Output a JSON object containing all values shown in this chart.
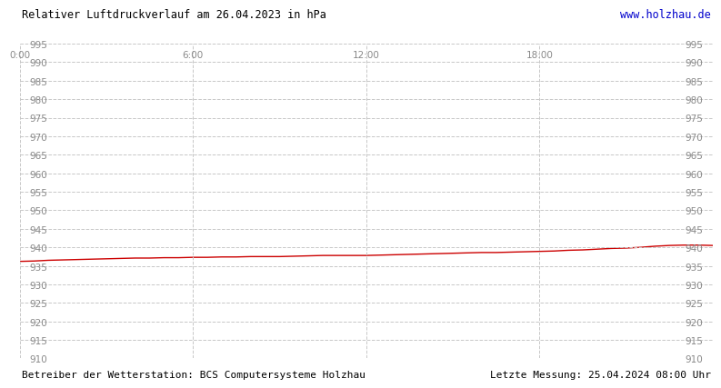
{
  "title": "Relativer Luftdruckverlauf am 26.04.2023 in hPa",
  "url_text": "www.holzhau.de",
  "url_color": "#0000cc",
  "bottom_left_text": "Betreiber der Wetterstation: BCS Computersysteme Holzhau",
  "bottom_right_text": "Letzte Messung: 25.04.2024 08:00 Uhr",
  "ylim": [
    910,
    995
  ],
  "yticks": [
    910,
    915,
    920,
    925,
    930,
    935,
    940,
    945,
    950,
    955,
    960,
    965,
    970,
    975,
    980,
    985,
    990,
    995
  ],
  "xlim": [
    0,
    1440
  ],
  "xtick_positions": [
    0,
    360,
    720,
    1080,
    1440
  ],
  "xtick_labels": [
    "0:00",
    "6:00",
    "12:00",
    "18:00",
    ""
  ],
  "line_color": "#cc0000",
  "line_width": 1.0,
  "grid_color": "#c8c8c8",
  "grid_style": "--",
  "background_color": "#ffffff",
  "plot_bg_color": "#ffffff",
  "title_fontsize": 8.5,
  "axis_fontsize": 7.5,
  "footer_fontsize": 8.0,
  "pressure_data_x": [
    0,
    30,
    60,
    90,
    120,
    150,
    180,
    210,
    240,
    270,
    300,
    330,
    360,
    390,
    420,
    450,
    480,
    510,
    540,
    570,
    600,
    630,
    660,
    690,
    720,
    750,
    780,
    810,
    840,
    870,
    900,
    930,
    960,
    990,
    1020,
    1050,
    1080,
    1110,
    1140,
    1170,
    1200,
    1230,
    1260,
    1290,
    1320,
    1350,
    1380,
    1410,
    1440
  ],
  "pressure_data_y": [
    936.2,
    936.3,
    936.5,
    936.6,
    936.7,
    936.8,
    936.9,
    937.0,
    937.1,
    937.1,
    937.2,
    937.2,
    937.3,
    937.3,
    937.4,
    937.4,
    937.5,
    937.5,
    937.5,
    937.6,
    937.7,
    937.8,
    937.8,
    937.8,
    937.8,
    937.9,
    938.0,
    938.1,
    938.2,
    938.3,
    938.4,
    938.5,
    938.6,
    938.6,
    938.7,
    938.8,
    938.9,
    939.0,
    939.2,
    939.3,
    939.5,
    939.7,
    939.8,
    940.0,
    940.3,
    940.5,
    940.6,
    940.6,
    940.5
  ]
}
